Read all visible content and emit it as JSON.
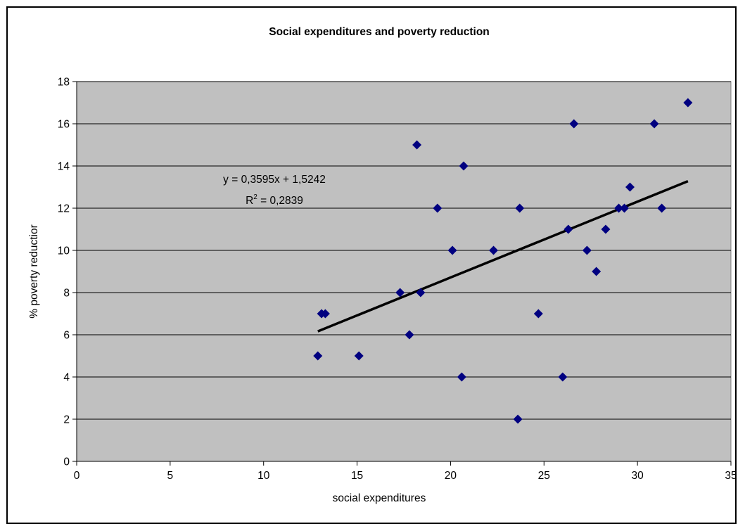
{
  "chart_data": {
    "type": "scatter",
    "title": "Social expenditures and poverty reduction",
    "xlabel": "social expenditures",
    "ylabel": "% poverty reductior",
    "xlim": [
      0,
      35
    ],
    "ylim": [
      0,
      18
    ],
    "xticks": [
      0,
      5,
      10,
      15,
      20,
      25,
      30,
      35
    ],
    "yticks": [
      0,
      2,
      4,
      6,
      8,
      10,
      12,
      14,
      16,
      18
    ],
    "grid": true,
    "plot_background": "#c0c0c0",
    "marker_color": "#000080",
    "series": [
      {
        "points": [
          {
            "x": 12.9,
            "y": 5
          },
          {
            "x": 13.1,
            "y": 7
          },
          {
            "x": 13.3,
            "y": 7
          },
          {
            "x": 15.1,
            "y": 5
          },
          {
            "x": 17.3,
            "y": 8
          },
          {
            "x": 17.8,
            "y": 6
          },
          {
            "x": 18.2,
            "y": 15
          },
          {
            "x": 18.4,
            "y": 8
          },
          {
            "x": 19.3,
            "y": 12
          },
          {
            "x": 20.1,
            "y": 10
          },
          {
            "x": 20.6,
            "y": 4
          },
          {
            "x": 20.7,
            "y": 14
          },
          {
            "x": 22.3,
            "y": 10
          },
          {
            "x": 23.6,
            "y": 2
          },
          {
            "x": 23.7,
            "y": 12
          },
          {
            "x": 24.7,
            "y": 7
          },
          {
            "x": 26.0,
            "y": 4
          },
          {
            "x": 26.3,
            "y": 11
          },
          {
            "x": 26.6,
            "y": 16
          },
          {
            "x": 27.3,
            "y": 10
          },
          {
            "x": 27.8,
            "y": 9
          },
          {
            "x": 28.3,
            "y": 11
          },
          {
            "x": 29.0,
            "y": 12
          },
          {
            "x": 29.3,
            "y": 12
          },
          {
            "x": 29.6,
            "y": 13
          },
          {
            "x": 30.9,
            "y": 16
          },
          {
            "x": 31.3,
            "y": 12
          },
          {
            "x": 32.7,
            "y": 17
          }
        ]
      }
    ],
    "trendline": {
      "slope": 0.3595,
      "intercept": 1.5242,
      "x_range": [
        12.9,
        32.7
      ],
      "color": "#000000",
      "equation_label": "y = 0,3595x + 1,5242",
      "r2_prefix": "R",
      "r2_superscript": "2",
      "r2_value": " = 0,2839"
    }
  }
}
